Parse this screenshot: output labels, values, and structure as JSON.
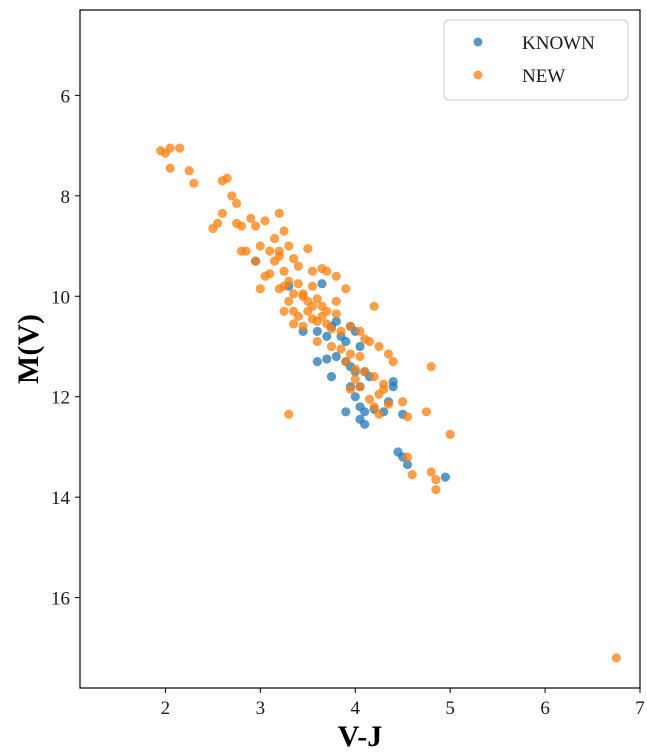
{
  "chart_data": {
    "type": "scatter",
    "title": "",
    "xlabel": "V-J",
    "ylabel": "M(V)",
    "xlim": [
      1.1,
      7.0
    ],
    "ylim": [
      17.8,
      4.3
    ],
    "y_inverted": true,
    "x_ticks": [
      2,
      3,
      4,
      5,
      6,
      7
    ],
    "y_ticks": [
      6,
      8,
      10,
      12,
      14,
      16
    ],
    "grid": false,
    "legend_position": "top-right",
    "series": [
      {
        "name": "KNOWN",
        "color": "#1f77b4",
        "points": [
          [
            2.95,
            9.3
          ],
          [
            3.3,
            9.8
          ],
          [
            3.45,
            10.7
          ],
          [
            3.65,
            9.75
          ],
          [
            3.6,
            10.7
          ],
          [
            3.7,
            10.8
          ],
          [
            3.75,
            10.6
          ],
          [
            3.8,
            10.5
          ],
          [
            3.85,
            10.8
          ],
          [
            3.9,
            10.9
          ],
          [
            3.95,
            10.6
          ],
          [
            4.0,
            10.7
          ],
          [
            4.05,
            11.0
          ],
          [
            3.6,
            11.3
          ],
          [
            3.7,
            11.25
          ],
          [
            3.8,
            11.2
          ],
          [
            3.9,
            11.3
          ],
          [
            3.95,
            11.4
          ],
          [
            4.0,
            11.5
          ],
          [
            4.1,
            11.5
          ],
          [
            4.15,
            11.6
          ],
          [
            3.75,
            11.6
          ],
          [
            3.95,
            11.8
          ],
          [
            4.0,
            12.0
          ],
          [
            4.05,
            11.8
          ],
          [
            3.9,
            12.3
          ],
          [
            4.05,
            12.2
          ],
          [
            4.1,
            12.3
          ],
          [
            4.05,
            12.45
          ],
          [
            4.1,
            12.55
          ],
          [
            4.2,
            12.25
          ],
          [
            4.3,
            12.3
          ],
          [
            4.4,
            11.7
          ],
          [
            4.4,
            11.8
          ],
          [
            4.5,
            12.35
          ],
          [
            4.45,
            13.1
          ],
          [
            4.5,
            13.2
          ],
          [
            4.55,
            13.35
          ],
          [
            4.95,
            13.6
          ],
          [
            4.35,
            12.1
          ]
        ]
      },
      {
        "name": "NEW",
        "color": "#ff7f0e",
        "points": [
          [
            1.95,
            7.1
          ],
          [
            2.0,
            7.15
          ],
          [
            2.05,
            7.05
          ],
          [
            2.15,
            7.05
          ],
          [
            2.05,
            7.45
          ],
          [
            2.25,
            7.5
          ],
          [
            2.3,
            7.75
          ],
          [
            2.6,
            7.7
          ],
          [
            2.65,
            7.65
          ],
          [
            2.7,
            8.0
          ],
          [
            2.75,
            8.15
          ],
          [
            2.55,
            8.55
          ],
          [
            2.6,
            8.35
          ],
          [
            2.75,
            8.55
          ],
          [
            2.8,
            8.6
          ],
          [
            2.5,
            8.65
          ],
          [
            2.9,
            8.45
          ],
          [
            2.95,
            8.6
          ],
          [
            3.05,
            8.5
          ],
          [
            3.2,
            8.35
          ],
          [
            3.25,
            8.7
          ],
          [
            2.8,
            9.1
          ],
          [
            3.0,
            9.0
          ],
          [
            3.1,
            9.1
          ],
          [
            3.2,
            9.2
          ],
          [
            3.3,
            9.0
          ],
          [
            3.35,
            9.25
          ],
          [
            3.4,
            9.4
          ],
          [
            3.5,
            9.05
          ],
          [
            3.15,
            9.3
          ],
          [
            3.05,
            9.6
          ],
          [
            3.25,
            9.5
          ],
          [
            3.3,
            9.7
          ],
          [
            3.4,
            9.75
          ],
          [
            3.55,
            9.5
          ],
          [
            3.65,
            9.45
          ],
          [
            3.7,
            9.5
          ],
          [
            3.8,
            9.6
          ],
          [
            3.55,
            9.8
          ],
          [
            3.45,
            9.95
          ],
          [
            3.5,
            10.1
          ],
          [
            3.6,
            10.05
          ],
          [
            3.65,
            10.2
          ],
          [
            3.7,
            10.3
          ],
          [
            3.8,
            10.35
          ],
          [
            3.9,
            9.85
          ],
          [
            3.3,
            10.1
          ],
          [
            3.35,
            10.3
          ],
          [
            3.4,
            10.4
          ],
          [
            3.5,
            10.3
          ],
          [
            3.55,
            10.45
          ],
          [
            3.6,
            10.5
          ],
          [
            3.65,
            10.4
          ],
          [
            3.25,
            10.3
          ],
          [
            3.35,
            10.55
          ],
          [
            3.45,
            10.6
          ],
          [
            3.7,
            10.55
          ],
          [
            3.75,
            10.65
          ],
          [
            3.85,
            10.7
          ],
          [
            3.95,
            10.6
          ],
          [
            4.05,
            10.7
          ],
          [
            4.1,
            10.85
          ],
          [
            4.2,
            10.2
          ],
          [
            3.6,
            10.9
          ],
          [
            3.75,
            11.0
          ],
          [
            3.85,
            11.05
          ],
          [
            3.95,
            11.15
          ],
          [
            4.05,
            11.2
          ],
          [
            4.15,
            10.9
          ],
          [
            4.25,
            11.0
          ],
          [
            4.35,
            11.15
          ],
          [
            4.4,
            11.3
          ],
          [
            3.9,
            11.3
          ],
          [
            4.0,
            11.45
          ],
          [
            4.1,
            11.5
          ],
          [
            4.2,
            11.6
          ],
          [
            4.3,
            11.75
          ],
          [
            4.0,
            11.65
          ],
          [
            3.95,
            11.85
          ],
          [
            4.05,
            11.8
          ],
          [
            4.15,
            12.05
          ],
          [
            4.2,
            12.2
          ],
          [
            4.25,
            11.95
          ],
          [
            4.3,
            11.85
          ],
          [
            4.35,
            12.15
          ],
          [
            4.25,
            12.35
          ],
          [
            4.5,
            12.1
          ],
          [
            4.55,
            12.4
          ],
          [
            4.75,
            12.3
          ],
          [
            4.8,
            11.4
          ],
          [
            3.3,
            12.35
          ],
          [
            4.55,
            13.2
          ],
          [
            4.6,
            13.55
          ],
          [
            4.8,
            13.5
          ],
          [
            4.85,
            13.65
          ],
          [
            4.85,
            13.85
          ],
          [
            5.0,
            12.75
          ],
          [
            6.75,
            17.2
          ],
          [
            3.0,
            9.85
          ],
          [
            2.95,
            9.3
          ],
          [
            3.1,
            9.55
          ],
          [
            3.2,
            9.85
          ],
          [
            3.45,
            10.0
          ],
          [
            3.55,
            10.2
          ],
          [
            3.8,
            10.1
          ],
          [
            3.35,
            9.95
          ],
          [
            3.25,
            9.8
          ],
          [
            2.85,
            9.1
          ],
          [
            3.15,
            8.85
          ],
          [
            3.2,
            9.1
          ]
        ]
      }
    ]
  }
}
